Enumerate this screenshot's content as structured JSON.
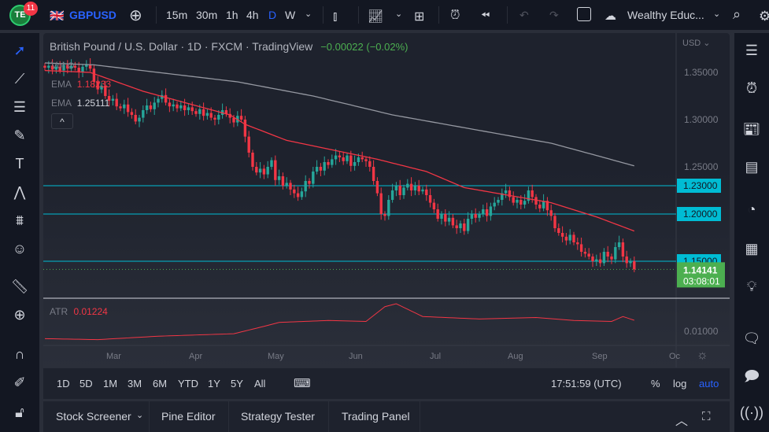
{
  "topbar": {
    "badge": "11",
    "symbol": "GBPUSD",
    "intervals": [
      "15m",
      "30m",
      "1h",
      "4h",
      "D",
      "W"
    ],
    "active_interval": "D",
    "layout_name": "Wealthy Educ..."
  },
  "legend": {
    "title": "British Pound / U.S. Dollar · 1D · FXCM · TradingView",
    "change": "−0.00022 (−0.02%)",
    "vol": "Vol",
    "ema1_label": "EMA",
    "ema1_value": "1.18233",
    "ema2_label": "EMA",
    "ema2_value": "1.25111",
    "collapse": "^"
  },
  "price_axis": {
    "currency": "USD",
    "ticks": [
      "1.35000",
      "1.30000",
      "1.25000"
    ],
    "tick_values": [
      1.35,
      1.3,
      1.25
    ],
    "lines": [
      {
        "label": "1.23000",
        "value": 1.23
      },
      {
        "label": "1.20000",
        "value": 1.2
      },
      {
        "label": "1.15000",
        "value": 1.15
      }
    ],
    "last_price": "1.14141",
    "countdown": "03:08:01",
    "line_color": "#00bcd4",
    "up_color": "#26a69a",
    "down_color": "#f23645",
    "last_color": "#4caf50"
  },
  "atr": {
    "label": "ATR",
    "value": "0.01224",
    "tick": "0.01000",
    "tick_value": 0.01
  },
  "time_axis": [
    "Mar",
    "Apr",
    "May",
    "Jun",
    "Jul",
    "Aug",
    "Sep",
    "Oc"
  ],
  "chart_data": {
    "type": "candlestick",
    "closes": [
      1.355,
      1.357,
      1.353,
      1.356,
      1.352,
      1.358,
      1.354,
      1.357,
      1.355,
      1.35,
      1.356,
      1.358,
      1.354,
      1.34,
      1.332,
      1.336,
      1.325,
      1.32,
      1.322,
      1.314,
      1.312,
      1.316,
      1.308,
      1.305,
      1.298,
      1.302,
      1.31,
      1.315,
      1.311,
      1.318,
      1.322,
      1.326,
      1.318,
      1.314,
      1.316,
      1.312,
      1.315,
      1.31,
      1.313,
      1.309,
      1.306,
      1.311,
      1.304,
      1.307,
      1.302,
      1.3,
      1.305,
      1.31,
      1.306,
      1.302,
      1.297,
      1.304,
      1.3,
      1.282,
      1.265,
      1.25,
      1.244,
      1.248,
      1.242,
      1.25,
      1.257,
      1.236,
      1.24,
      1.23,
      1.233,
      1.226,
      1.222,
      1.218,
      1.224,
      1.235,
      1.232,
      1.245,
      1.25,
      1.246,
      1.255,
      1.252,
      1.258,
      1.262,
      1.26,
      1.256,
      1.262,
      1.251,
      1.255,
      1.26,
      1.258,
      1.256,
      1.25,
      1.235,
      1.222,
      1.2,
      1.198,
      1.215,
      1.225,
      1.23,
      1.22,
      1.228,
      1.232,
      1.225,
      1.23,
      1.224,
      1.226,
      1.22,
      1.212,
      1.205,
      1.195,
      1.2,
      1.192,
      1.196,
      1.188,
      1.185,
      1.19,
      1.182,
      1.195,
      1.2,
      1.196,
      1.2,
      1.205,
      1.198,
      1.208,
      1.212,
      1.215,
      1.222,
      1.225,
      1.218,
      1.212,
      1.215,
      1.21,
      1.214,
      1.225,
      1.218,
      1.21,
      1.206,
      1.214,
      1.204,
      1.198,
      1.185,
      1.18,
      1.176,
      1.172,
      1.178,
      1.17,
      1.168,
      1.16,
      1.158,
      1.155,
      1.15,
      1.152,
      1.148,
      1.16,
      1.155,
      1.152,
      1.165,
      1.17,
      1.155,
      1.148,
      1.15,
      1.1414
    ],
    "ema_red": [
      [
        0,
        1.352
      ],
      [
        12,
        1.35
      ],
      [
        19,
        1.34
      ],
      [
        26,
        1.33
      ],
      [
        49,
        1.305
      ],
      [
        53,
        1.295
      ],
      [
        64,
        1.278
      ],
      [
        76,
        1.268
      ],
      [
        88,
        1.258
      ],
      [
        101,
        1.245
      ],
      [
        111,
        1.228
      ],
      [
        134,
        1.212
      ],
      [
        146,
        1.197
      ],
      [
        156,
        1.182
      ]
    ],
    "ema_gray": [
      [
        0,
        1.36
      ],
      [
        13,
        1.358
      ],
      [
        51,
        1.34
      ],
      [
        71,
        1.325
      ],
      [
        92,
        1.305
      ],
      [
        113,
        1.29
      ],
      [
        134,
        1.275
      ],
      [
        146,
        1.262
      ],
      [
        156,
        1.251
      ]
    ],
    "atr": [
      [
        0,
        0.0085
      ],
      [
        14,
        0.0083
      ],
      [
        30,
        0.009
      ],
      [
        50,
        0.0095
      ],
      [
        58,
        0.011
      ],
      [
        62,
        0.0118
      ],
      [
        75,
        0.0122
      ],
      [
        85,
        0.012
      ],
      [
        90,
        0.015
      ],
      [
        93,
        0.0156
      ],
      [
        100,
        0.013
      ],
      [
        115,
        0.0125
      ],
      [
        130,
        0.0128
      ],
      [
        140,
        0.0122
      ],
      [
        150,
        0.012
      ],
      [
        153,
        0.013
      ],
      [
        156,
        0.01224
      ]
    ]
  },
  "timeframes": [
    "1D",
    "5D",
    "1M",
    "3M",
    "6M",
    "YTD",
    "1Y",
    "5Y",
    "All"
  ],
  "clock": "17:51:59 (UTC)",
  "scale": {
    "percent": "%",
    "log": "log",
    "auto": "auto"
  },
  "bottom_tabs": [
    "Stock Screener",
    "Pine Editor",
    "Strategy Tester",
    "Trading Panel"
  ]
}
